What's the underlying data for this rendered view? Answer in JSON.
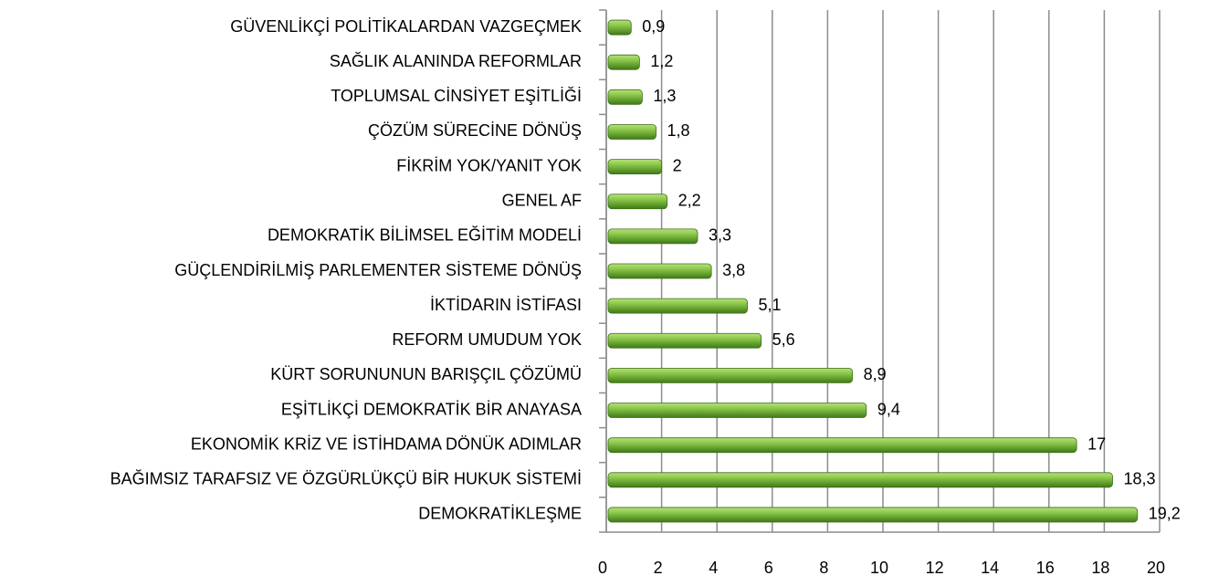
{
  "chart_data": {
    "type": "barh",
    "categories": [
      "GÜVENLİKÇİ POLİTİKALARDAN VAZGEÇMEK",
      "SAĞLIK ALANINDA REFORMLAR",
      "TOPLUMSAL CİNSİYET EŞİTLİĞİ",
      "ÇÖZÜM SÜRECİNE DÖNÜŞ",
      "FİKRİM YOK/YANIT YOK",
      "GENEL AF",
      "DEMOKRATİK BİLİMSEL EĞİTİM MODELİ",
      "GÜÇLENDİRİLMİŞ PARLEMENTER SİSTEME DÖNÜŞ",
      "İKTİDARIN İSTİFASI",
      "REFORM UMUDUM YOK",
      "KÜRT SORUNUNUN BARIŞÇIL ÇÖZÜMÜ",
      "EŞİTLİKÇİ DEMOKRATİK BİR ANAYASA",
      "EKONOMİK KRİZ VE İSTİHDAMA DÖNÜK ADIMLAR",
      "BAĞIMSIZ TARAFSIZ VE ÖZGÜRLÜKÇÜ BİR HUKUK SİSTEMİ",
      "DEMOKRATİKLEŞME"
    ],
    "values": [
      0.9,
      1.2,
      1.3,
      1.8,
      2,
      2.2,
      3.3,
      3.8,
      5.1,
      5.6,
      8.9,
      9.4,
      17,
      18.3,
      19.2
    ],
    "value_labels": [
      "0,9",
      "1,2",
      "1,3",
      "1,8",
      "2",
      "2,2",
      "3,3",
      "3,8",
      "5,1",
      "5,6",
      "8,9",
      "9,4",
      "17",
      "18,3",
      "19,2"
    ],
    "color": "#6aaa2e",
    "xlim": [
      0,
      20
    ],
    "xticks": [
      0,
      2,
      4,
      6,
      8,
      10,
      12,
      14,
      16,
      18,
      20
    ],
    "grid": true
  }
}
